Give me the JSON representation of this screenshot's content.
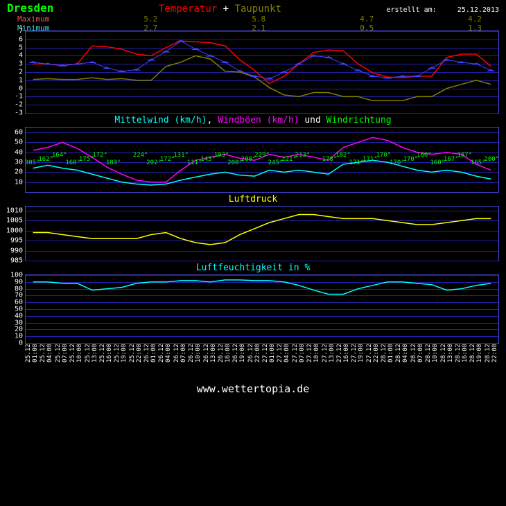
{
  "meta": {
    "city": "Dresden",
    "created_label": "erstellt am:",
    "created_date": "25.12.2013",
    "footer": "www.wettertopia.de"
  },
  "colors": {
    "bg": "#000000",
    "grid": "#2020aa",
    "axis": "#ffffff",
    "city": "#00ff00",
    "temp": "#ff0000",
    "dewpoint": "#808000",
    "plus": "#ffffff",
    "max_label": "#ff5050",
    "min_label": "#40e0d0",
    "mittelwind": "#00ffff",
    "windboen": "#ff00ff",
    "und": "#ffffff",
    "windrichtung": "#00ff00",
    "luftdruck": "#ffff00",
    "luftfeucht": "#00ffff",
    "markers": "#4040ff"
  },
  "titles": {
    "temp": "Temperatur",
    "plus": "+",
    "taupunkt": "Taupunkt",
    "max": "Maximum",
    "min": "Minimum",
    "wind_main": "Mittelwind (km/h)",
    "comma": ",",
    "wind_gust": "Windböen (km/h)",
    "und": "und",
    "wind_dir": "Windrichtung",
    "pressure": "Luftdruck",
    "humidity": "Luftfeuchtigkeit in %"
  },
  "header_values": {
    "max": [
      "5.2",
      "5.8",
      "4.7",
      "4.2"
    ],
    "min": [
      "2.7",
      "2.1",
      "0.5",
      "1.3"
    ]
  },
  "x_labels": [
    "25.12  01:00",
    "25.12  04:00",
    "25.12  07:00",
    "25.12  10:00",
    "25.12  13:00",
    "25.12  16:00",
    "25.12  19:00",
    "25.12  22:00",
    "26.12  01:00",
    "26.12  04:00",
    "26.12  07:00",
    "26.12  10:00",
    "26.12  13:00",
    "26.12  16:00",
    "26.12  19:00",
    "26.12  22:00",
    "27.12  01:00",
    "27.12  04:00",
    "27.12  07:00",
    "27.12  10:00",
    "27.12  13:00",
    "27.12  16:00",
    "27.12  19:00",
    "27.12  22:00",
    "28.12  01:00",
    "28.12  04:00",
    "28.12  07:00",
    "28.12  10:00",
    "28.12  13:00",
    "28.12  16:00",
    "28.12  19:00",
    "28.12  22:00"
  ],
  "charts": {
    "temp": {
      "height": 120,
      "ylim": [
        -3,
        7
      ],
      "yticks": [
        -3,
        -2,
        -1,
        0,
        1,
        2,
        3,
        4,
        5,
        6,
        7
      ],
      "series": {
        "maximum": {
          "color": "#ff0000",
          "width": 1.5,
          "data": [
            3,
            3,
            2.8,
            3,
            5.2,
            5.1,
            4.8,
            4.2,
            4,
            5,
            5.8,
            5.7,
            5.6,
            5.2,
            3.5,
            2.2,
            0.6,
            1.5,
            3,
            4.4,
            4.7,
            4.6,
            3,
            1.9,
            1.4,
            1.3,
            1.5,
            1.5,
            3.8,
            4.2,
            4.2,
            2.7
          ]
        },
        "minimum": {
          "color": "#808000",
          "width": 1.5,
          "data": [
            1.1,
            1.2,
            1.1,
            1.1,
            1.3,
            1.1,
            1.2,
            1,
            1,
            2.7,
            3.2,
            4,
            3.6,
            2.1,
            2,
            1.4,
            0.1,
            -0.8,
            -1,
            -0.5,
            -0.5,
            -1,
            -1,
            -1.5,
            -1.5,
            -1.5,
            -1,
            -1,
            0,
            0.5,
            1,
            0.5
          ]
        },
        "markers": {
          "color": "#4040ff",
          "data": [
            3.2,
            3,
            2.8,
            3,
            3.2,
            2.5,
            2.1,
            2.3,
            3.5,
            4.5,
            5.8,
            4.8,
            4,
            3.2,
            2.1,
            1.5,
            1.2,
            2,
            3,
            4,
            3.8,
            3,
            2.2,
            1.5,
            1.3,
            1.5,
            1.5,
            2.5,
            3.5,
            3.2,
            3,
            2.2
          ]
        }
      }
    },
    "wind": {
      "height": 95,
      "ylim": [
        0,
        65
      ],
      "yticks": [
        10,
        20,
        30,
        40,
        50,
        60
      ],
      "series": {
        "gust": {
          "color": "#ff00ff",
          "width": 1.5,
          "data": [
            42,
            45,
            50,
            44,
            35,
            25,
            18,
            12,
            10,
            10,
            22,
            32,
            35,
            38,
            34,
            32,
            38,
            35,
            38,
            35,
            32,
            45,
            50,
            55,
            52,
            45,
            40,
            38,
            40,
            38,
            28,
            22
          ]
        },
        "mean": {
          "color": "#00ffff",
          "width": 1.5,
          "data": [
            24,
            27,
            24,
            22,
            18,
            14,
            10,
            8,
            7,
            8,
            12,
            15,
            18,
            20,
            17,
            16,
            22,
            20,
            22,
            20,
            18,
            28,
            30,
            32,
            30,
            26,
            22,
            20,
            22,
            20,
            16,
            13
          ]
        },
        "dir_markers": {
          "color": "#00ff00",
          "labels": [
            "305°",
            "162°",
            "164°",
            "168°",
            "175°",
            "172°",
            "183°",
            "",
            "224°",
            "202°",
            "172°",
            "131°",
            "111°",
            "143°",
            "193°",
            "208°",
            "200°",
            "229°",
            "245°",
            "221°",
            "213°",
            "",
            "178°",
            "182°",
            "171°",
            "171°",
            "170°",
            "170°",
            "170°",
            "166°",
            "160°",
            "167°",
            "187°",
            "165°",
            "200°"
          ]
        }
      }
    },
    "pressure": {
      "height": 80,
      "ylim": [
        985,
        1012
      ],
      "yticks": [
        985,
        990,
        995,
        1000,
        1005,
        1010
      ],
      "series": {
        "p": {
          "color": "#ffff00",
          "width": 1.5,
          "data": [
            999,
            999,
            998,
            997,
            996,
            996,
            996,
            996,
            998,
            999,
            996,
            994,
            993,
            994,
            998,
            1001,
            1004,
            1006,
            1008,
            1008,
            1007,
            1006,
            1006,
            1006,
            1005,
            1004,
            1003,
            1003,
            1004,
            1005,
            1006,
            1006
          ]
        }
      }
    },
    "humidity": {
      "height": 100,
      "ylim": [
        0,
        100
      ],
      "yticks": [
        0,
        10,
        20,
        30,
        40,
        50,
        60,
        70,
        80,
        90,
        100
      ],
      "series": {
        "h": {
          "color": "#00ffff",
          "width": 1.5,
          "data": [
            90,
            90,
            88,
            88,
            78,
            80,
            82,
            88,
            90,
            90,
            92,
            92,
            90,
            93,
            93,
            92,
            92,
            90,
            85,
            78,
            72,
            72,
            80,
            85,
            90,
            90,
            88,
            86,
            78,
            80,
            85,
            88
          ]
        }
      }
    }
  }
}
